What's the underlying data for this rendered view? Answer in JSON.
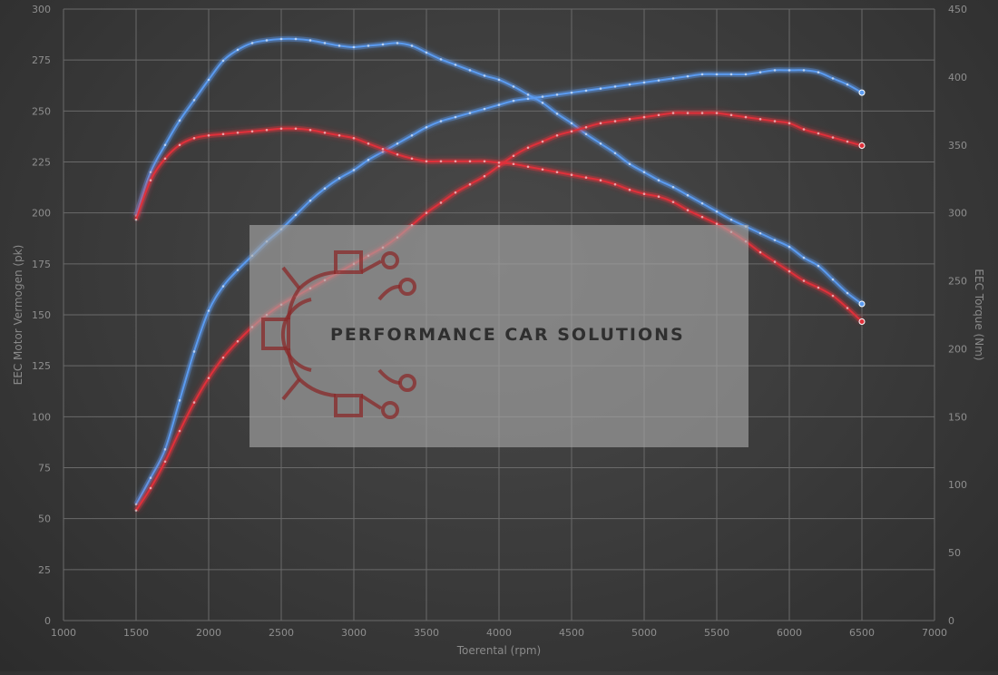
{
  "chart_data": {
    "type": "line",
    "xlabel": "Toerental (rpm)",
    "ylabel_left": "EEC Motor Vermogen (pk)",
    "ylabel_right": "EEC Torque (Nm)",
    "xlim": [
      1000,
      7000
    ],
    "ylim_left": [
      0,
      300
    ],
    "ylim_right": [
      0,
      450
    ],
    "x_ticks": [
      1000,
      1500,
      2000,
      2500,
      3000,
      3500,
      4000,
      4500,
      5000,
      5500,
      6000,
      6500,
      7000
    ],
    "y_left_ticks": [
      0,
      25,
      50,
      75,
      100,
      125,
      150,
      175,
      200,
      225,
      250,
      275,
      300
    ],
    "y_right_ticks": [
      0,
      50,
      100,
      150,
      200,
      250,
      300,
      350,
      400,
      450
    ],
    "grid": true,
    "series": [
      {
        "axis": "left",
        "color": "#5b9bf0",
        "x": [
          1500,
          1600,
          1700,
          1800,
          1900,
          2000,
          2100,
          2200,
          2300,
          2400,
          2500,
          2600,
          2700,
          2800,
          2900,
          3000,
          3100,
          3200,
          3300,
          3400,
          3500,
          3600,
          3700,
          3800,
          3900,
          4000,
          4100,
          4200,
          4300,
          4400,
          4500,
          4600,
          4700,
          4800,
          4900,
          5000,
          5100,
          5200,
          5300,
          5400,
          5500,
          5600,
          5700,
          5800,
          5900,
          6000,
          6100,
          6200,
          6300,
          6400,
          6500
        ],
        "values": [
          57,
          70,
          84,
          108,
          132,
          152,
          164,
          172,
          179,
          186,
          192,
          199,
          206,
          212,
          217,
          221,
          226,
          230,
          234,
          238,
          242,
          245,
          247,
          249,
          251,
          253,
          255,
          256,
          257,
          258,
          259,
          260,
          261,
          262,
          263,
          264,
          265,
          266,
          267,
          268,
          268,
          268,
          268,
          269,
          270,
          270,
          270,
          269,
          266,
          263,
          259
        ]
      },
      {
        "axis": "right",
        "color": "#5b9bf0",
        "x": [
          1500,
          1600,
          1700,
          1800,
          1900,
          2000,
          2100,
          2200,
          2300,
          2400,
          2500,
          2600,
          2700,
          2800,
          2900,
          3000,
          3100,
          3200,
          3300,
          3400,
          3500,
          3600,
          3700,
          3800,
          3900,
          4000,
          4100,
          4200,
          4300,
          4400,
          4500,
          4600,
          4700,
          4800,
          4900,
          5000,
          5100,
          5200,
          5300,
          5400,
          5500,
          5600,
          5700,
          5800,
          5900,
          6000,
          6100,
          6200,
          6300,
          6400,
          6500
        ],
        "values": [
          298,
          330,
          350,
          368,
          383,
          398,
          412,
          420,
          425,
          427,
          428,
          428,
          427,
          425,
          423,
          422,
          423,
          424,
          425,
          423,
          418,
          413,
          409,
          405,
          401,
          398,
          393,
          387,
          381,
          373,
          366,
          358,
          351,
          344,
          336,
          330,
          324,
          319,
          313,
          307,
          301,
          295,
          290,
          285,
          280,
          275,
          267,
          261,
          251,
          241,
          233
        ]
      },
      {
        "axis": "left",
        "color": "#e0303a",
        "x": [
          1500,
          1600,
          1700,
          1800,
          1900,
          2000,
          2100,
          2200,
          2300,
          2400,
          2500,
          2600,
          2700,
          2800,
          2900,
          3000,
          3100,
          3200,
          3300,
          3400,
          3500,
          3600,
          3700,
          3800,
          3900,
          4000,
          4100,
          4200,
          4300,
          4400,
          4500,
          4600,
          4700,
          4800,
          4900,
          5000,
          5100,
          5200,
          5300,
          5400,
          5500,
          5600,
          5700,
          5800,
          5900,
          6000,
          6100,
          6200,
          6300,
          6400,
          6500
        ],
        "values": [
          54,
          65,
          78,
          93,
          107,
          119,
          129,
          137,
          144,
          150,
          155,
          159,
          163,
          167,
          171,
          175,
          179,
          183,
          188,
          194,
          200,
          205,
          210,
          214,
          218,
          223,
          228,
          232,
          235,
          238,
          240,
          242,
          244,
          245,
          246,
          247,
          248,
          249,
          249,
          249,
          249,
          248,
          247,
          246,
          245,
          244,
          241,
          239,
          237,
          235,
          233
        ]
      },
      {
        "axis": "right",
        "color": "#e0303a",
        "x": [
          1500,
          1600,
          1700,
          1800,
          1900,
          2000,
          2100,
          2200,
          2300,
          2400,
          2500,
          2600,
          2700,
          2800,
          2900,
          3000,
          3100,
          3200,
          3300,
          3400,
          3500,
          3600,
          3700,
          3800,
          3900,
          4000,
          4100,
          4200,
          4300,
          4400,
          4500,
          4600,
          4700,
          4800,
          4900,
          5000,
          5100,
          5200,
          5300,
          5400,
          5500,
          5600,
          5700,
          5800,
          5900,
          6000,
          6100,
          6200,
          6300,
          6400,
          6500
        ],
        "values": [
          295,
          324,
          340,
          350,
          355,
          357,
          358,
          359,
          360,
          361,
          362,
          362,
          361,
          359,
          357,
          355,
          351,
          347,
          343,
          340,
          338,
          338,
          338,
          338,
          338,
          337,
          336,
          334,
          332,
          330,
          328,
          326,
          324,
          321,
          317,
          314,
          312,
          308,
          302,
          297,
          292,
          286,
          279,
          271,
          264,
          257,
          250,
          245,
          239,
          230,
          220
        ]
      }
    ]
  },
  "watermark": {
    "text": "PERFORMANCE CAR SOLUTIONS"
  }
}
